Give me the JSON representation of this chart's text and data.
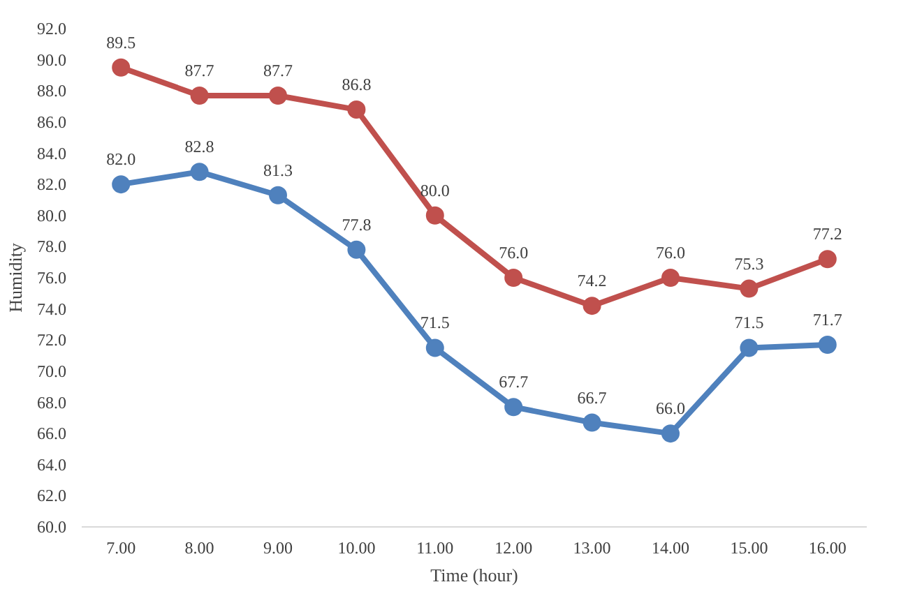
{
  "chart_data": {
    "type": "line",
    "xlabel": "Time (hour)",
    "ylabel": "Humidity",
    "categories": [
      "7.00",
      "8.00",
      "9.00",
      "10.00",
      "11.00",
      "12.00",
      "13.00",
      "14.00",
      "15.00",
      "16.00"
    ],
    "series": [
      {
        "color": "#c0504d",
        "values": [
          89.5,
          87.7,
          87.7,
          86.8,
          80.0,
          76.0,
          74.2,
          76.0,
          75.3,
          77.2
        ],
        "value_labels": [
          "89.5",
          "87.7",
          "87.7",
          "86.8",
          "80.0",
          "76.0",
          "74.2",
          "76.0",
          "75.3",
          "77.2"
        ]
      },
      {
        "color": "#4f81bd",
        "values": [
          82.0,
          82.8,
          81.3,
          77.8,
          71.5,
          67.7,
          66.7,
          66.0,
          71.5,
          71.7
        ],
        "value_labels": [
          "82.0",
          "82.8",
          "81.3",
          "77.8",
          "71.5",
          "67.7",
          "66.7",
          "66.0",
          "71.5",
          "71.7"
        ]
      }
    ],
    "ylim": [
      60,
      92
    ],
    "yticks": [
      {
        "value": 60,
        "label": "60.0"
      },
      {
        "value": 62,
        "label": "62.0"
      },
      {
        "value": 64,
        "label": "64.0"
      },
      {
        "value": 66,
        "label": "66.0"
      },
      {
        "value": 68,
        "label": "68.0"
      },
      {
        "value": 70,
        "label": "70.0"
      },
      {
        "value": 72,
        "label": "72.0"
      },
      {
        "value": 74,
        "label": "74.0"
      },
      {
        "value": 76,
        "label": "76.0"
      },
      {
        "value": 78,
        "label": "78.0"
      },
      {
        "value": 80,
        "label": "80.0"
      },
      {
        "value": 82,
        "label": "82.0"
      },
      {
        "value": 84,
        "label": "84.0"
      },
      {
        "value": 86,
        "label": "86.0"
      },
      {
        "value": 88,
        "label": "88.0"
      },
      {
        "value": 90,
        "label": "90.0"
      },
      {
        "value": 92,
        "label": "92.0"
      }
    ],
    "marker": "circle",
    "line_style": "solid",
    "grid": false
  }
}
